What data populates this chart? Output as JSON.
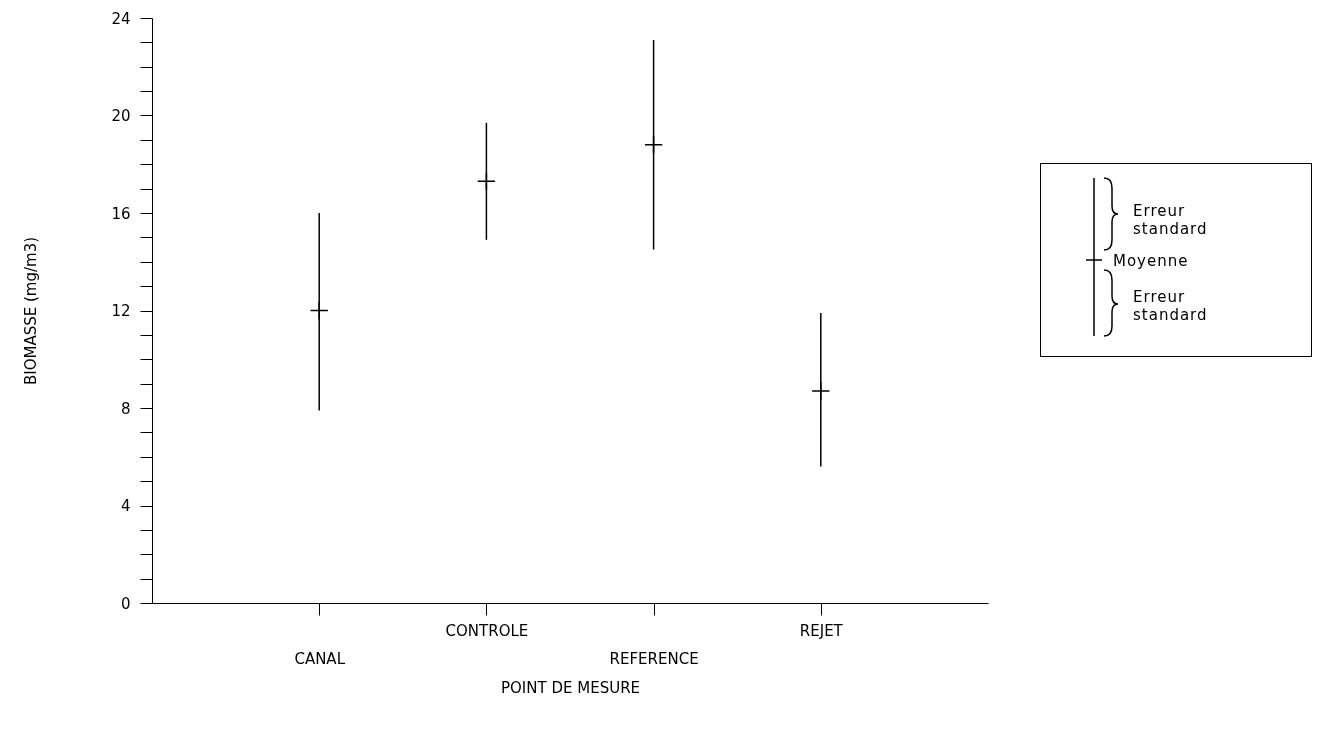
{
  "chart_data": {
    "type": "scatter",
    "xlabel": "POINT DE MESURE",
    "ylabel": "BIOMASSE  (mg/m3)",
    "categories": [
      "CANAL",
      "CONTROLE",
      "REFERENCE",
      "REJET"
    ],
    "values": [
      12.0,
      17.3,
      18.8,
      8.7
    ],
    "errors": [
      [
        7.9,
        16.0
      ],
      [
        14.9,
        19.7
      ],
      [
        14.5,
        23.1
      ],
      [
        5.6,
        11.9
      ]
    ],
    "color": "#000000",
    "ylim": [
      0,
      24
    ],
    "yticks": [
      0,
      {
        "value": 1,
        "label": null
      },
      {
        "value": 2,
        "label": null
      },
      {
        "value": 3,
        "label": null
      },
      4,
      {
        "value": 5,
        "label": null
      },
      {
        "value": 6,
        "label": null
      },
      {
        "value": 7,
        "label": null
      },
      8,
      {
        "value": 9,
        "label": null
      },
      {
        "value": 10,
        "label": null
      },
      {
        "value": 11,
        "label": null
      },
      12,
      {
        "value": 13,
        "label": null
      },
      {
        "value": 14,
        "label": null
      },
      {
        "value": 15,
        "label": null
      },
      16,
      {
        "value": 17,
        "label": null
      },
      {
        "value": 18,
        "label": null
      },
      {
        "value": 19,
        "label": null
      },
      20,
      {
        "value": 21,
        "label": null
      },
      {
        "value": 22,
        "label": null
      },
      {
        "value": 23,
        "label": null
      },
      24
    ],
    "annotations": [
      "Erreur standard",
      "Moyenne",
      "Erreur standard"
    ],
    "grid": false,
    "marker": "cross"
  }
}
